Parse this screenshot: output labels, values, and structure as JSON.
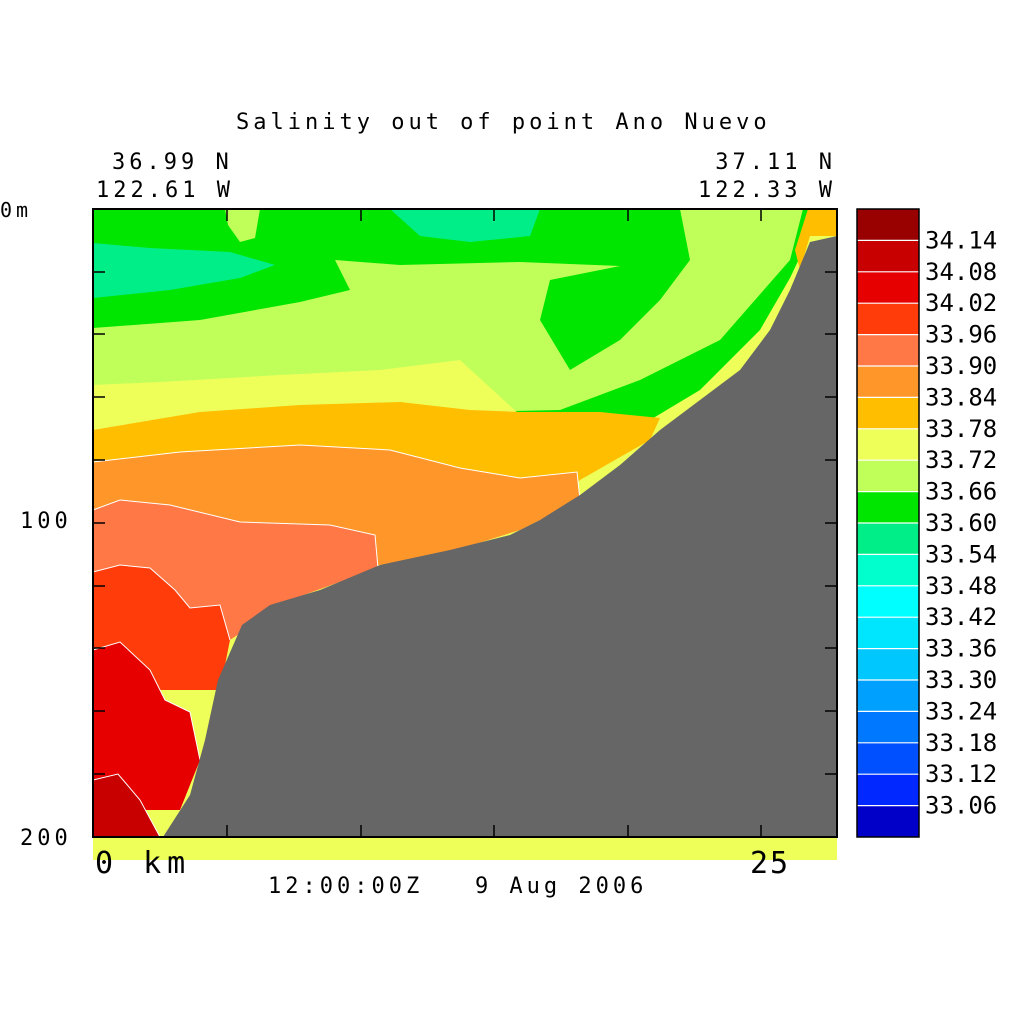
{
  "chart_data": {
    "type": "heatmap",
    "title": "Salinity out of point Ano Nuevo",
    "left_endpoint": {
      "lat": "36.99 N",
      "lon": "122.61 W"
    },
    "right_endpoint": {
      "lat": "37.11 N",
      "lon": "122.33 W"
    },
    "x_axis": {
      "range": [
        0,
        28
      ],
      "tick_labels": [
        "0 km",
        "25"
      ]
    },
    "y_axis": {
      "range": [
        0,
        200
      ],
      "reversed": true,
      "tick_labels": [
        "0m",
        "100",
        "200"
      ]
    },
    "timestamp": "12:00:00Z   9 Aug 2006",
    "legend": {
      "placement": "right",
      "levels": [
        "34.14",
        "34.08",
        "34.02",
        "33.96",
        "33.90",
        "33.84",
        "33.78",
        "33.72",
        "33.66",
        "33.60",
        "33.54",
        "33.48",
        "33.42",
        "33.36",
        "33.30",
        "33.24",
        "33.18",
        "33.12",
        "33.06"
      ],
      "colors": [
        "#990000",
        "#c80000",
        "#e60000",
        "#ff3c0a",
        "#ff7846",
        "#ff962a",
        "#ffbe00",
        "#eeff5a",
        "#c0ff5a",
        "#00e600",
        "#00ee88",
        "#00ffcc",
        "#00ffff",
        "#00e6ff",
        "#00c8ff",
        "#00a0ff",
        "#0078ff",
        "#0050ff",
        "#0028ff",
        "#0000c8"
      ]
    },
    "bottom_color": "#666666"
  }
}
